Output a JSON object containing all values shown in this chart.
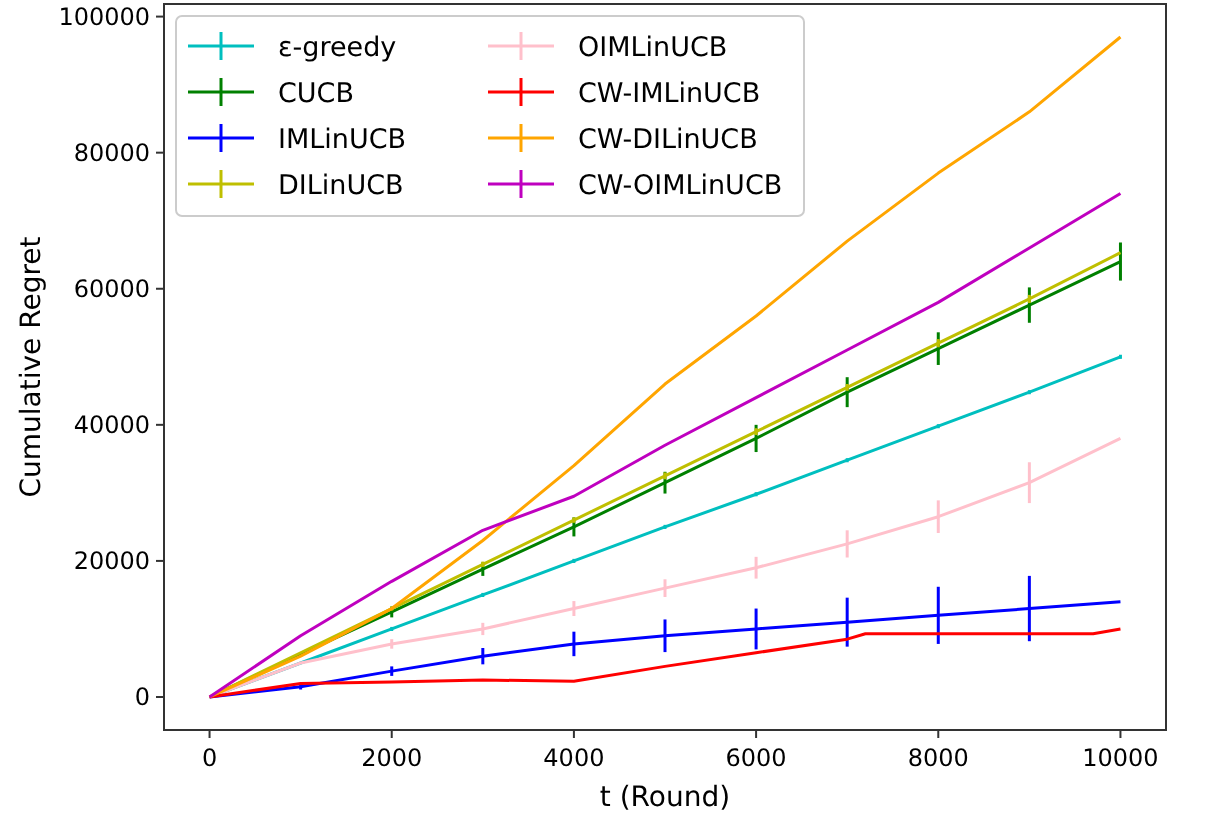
{
  "chart_data": {
    "type": "line",
    "xlabel": "t (Round)",
    "ylabel": "Cumulative Regret",
    "xlim": [
      -500,
      10500
    ],
    "ylim": [
      -4850,
      101850
    ],
    "xticks": [
      0,
      2000,
      4000,
      6000,
      8000,
      10000
    ],
    "yticks": [
      0,
      20000,
      40000,
      60000,
      80000,
      100000
    ],
    "grid": false,
    "legend": "top left",
    "marker": "none",
    "line_style": "solid",
    "x": [
      0,
      1000,
      2000,
      3000,
      4000,
      5000,
      6000,
      7000,
      8000,
      9000,
      10000
    ],
    "series": [
      {
        "name": "ε-greedy",
        "color": "#00bfbf",
        "values": [
          0,
          5000,
          10000,
          15000,
          20000,
          25000,
          29800,
          34800,
          39800,
          44800,
          50000
        ],
        "errors": [
          null,
          null,
          300,
          300,
          300,
          300,
          300,
          300,
          300,
          300,
          300
        ]
      },
      {
        "name": "CUCB",
        "color": "#008000",
        "values": [
          0,
          6300,
          12500,
          18800,
          25000,
          31500,
          38000,
          44800,
          51200,
          57600,
          64000
        ],
        "errors": [
          null,
          null,
          800,
          1000,
          1400,
          1600,
          2000,
          2200,
          2400,
          2600,
          2800
        ]
      },
      {
        "name": "IMLinUCB",
        "color": "#0000ff",
        "values": [
          0,
          1500,
          3800,
          6000,
          7800,
          9000,
          10000,
          11000,
          12000,
          13000,
          14000
        ],
        "errors": [
          null,
          400,
          700,
          1200,
          1800,
          2400,
          3000,
          3600,
          4200,
          4800,
          null
        ]
      },
      {
        "name": "DILinUCB",
        "color": "#bfbf00",
        "values": [
          0,
          6500,
          13000,
          19500,
          26000,
          32500,
          39000,
          45500,
          52000,
          58500,
          65300
        ],
        "errors": [
          null,
          null,
          300,
          400,
          400,
          500,
          500,
          500,
          600,
          600,
          null
        ]
      },
      {
        "name": "OIMLinUCB",
        "color": "#ffc0cb",
        "values": [
          0,
          5000,
          7800,
          10000,
          13000,
          16000,
          19000,
          22500,
          26500,
          31500,
          38000
        ],
        "errors": [
          null,
          null,
          700,
          900,
          1100,
          1300,
          1600,
          2000,
          2400,
          3000,
          null
        ]
      },
      {
        "name": "CW-IMLinUCB",
        "color": "#ff0000",
        "x": [
          0,
          1000,
          2000,
          3000,
          4000,
          5000,
          6000,
          7000,
          7200,
          8000,
          9000,
          9700,
          10000
        ],
        "values": [
          0,
          2000,
          2200,
          2500,
          2300,
          4500,
          6500,
          8500,
          9300,
          9300,
          9300,
          9300,
          10000
        ]
      },
      {
        "name": "CW-DILinUCB",
        "color": "#ffa500",
        "values": [
          0,
          6000,
          13000,
          23000,
          34000,
          46000,
          56000,
          67000,
          77000,
          86000,
          97000
        ]
      },
      {
        "name": "CW-OIMLinUCB",
        "color": "#bf00bf",
        "values": [
          0,
          9000,
          17000,
          24500,
          29500,
          37000,
          44000,
          51000,
          58000,
          66000,
          74000
        ]
      }
    ]
  }
}
